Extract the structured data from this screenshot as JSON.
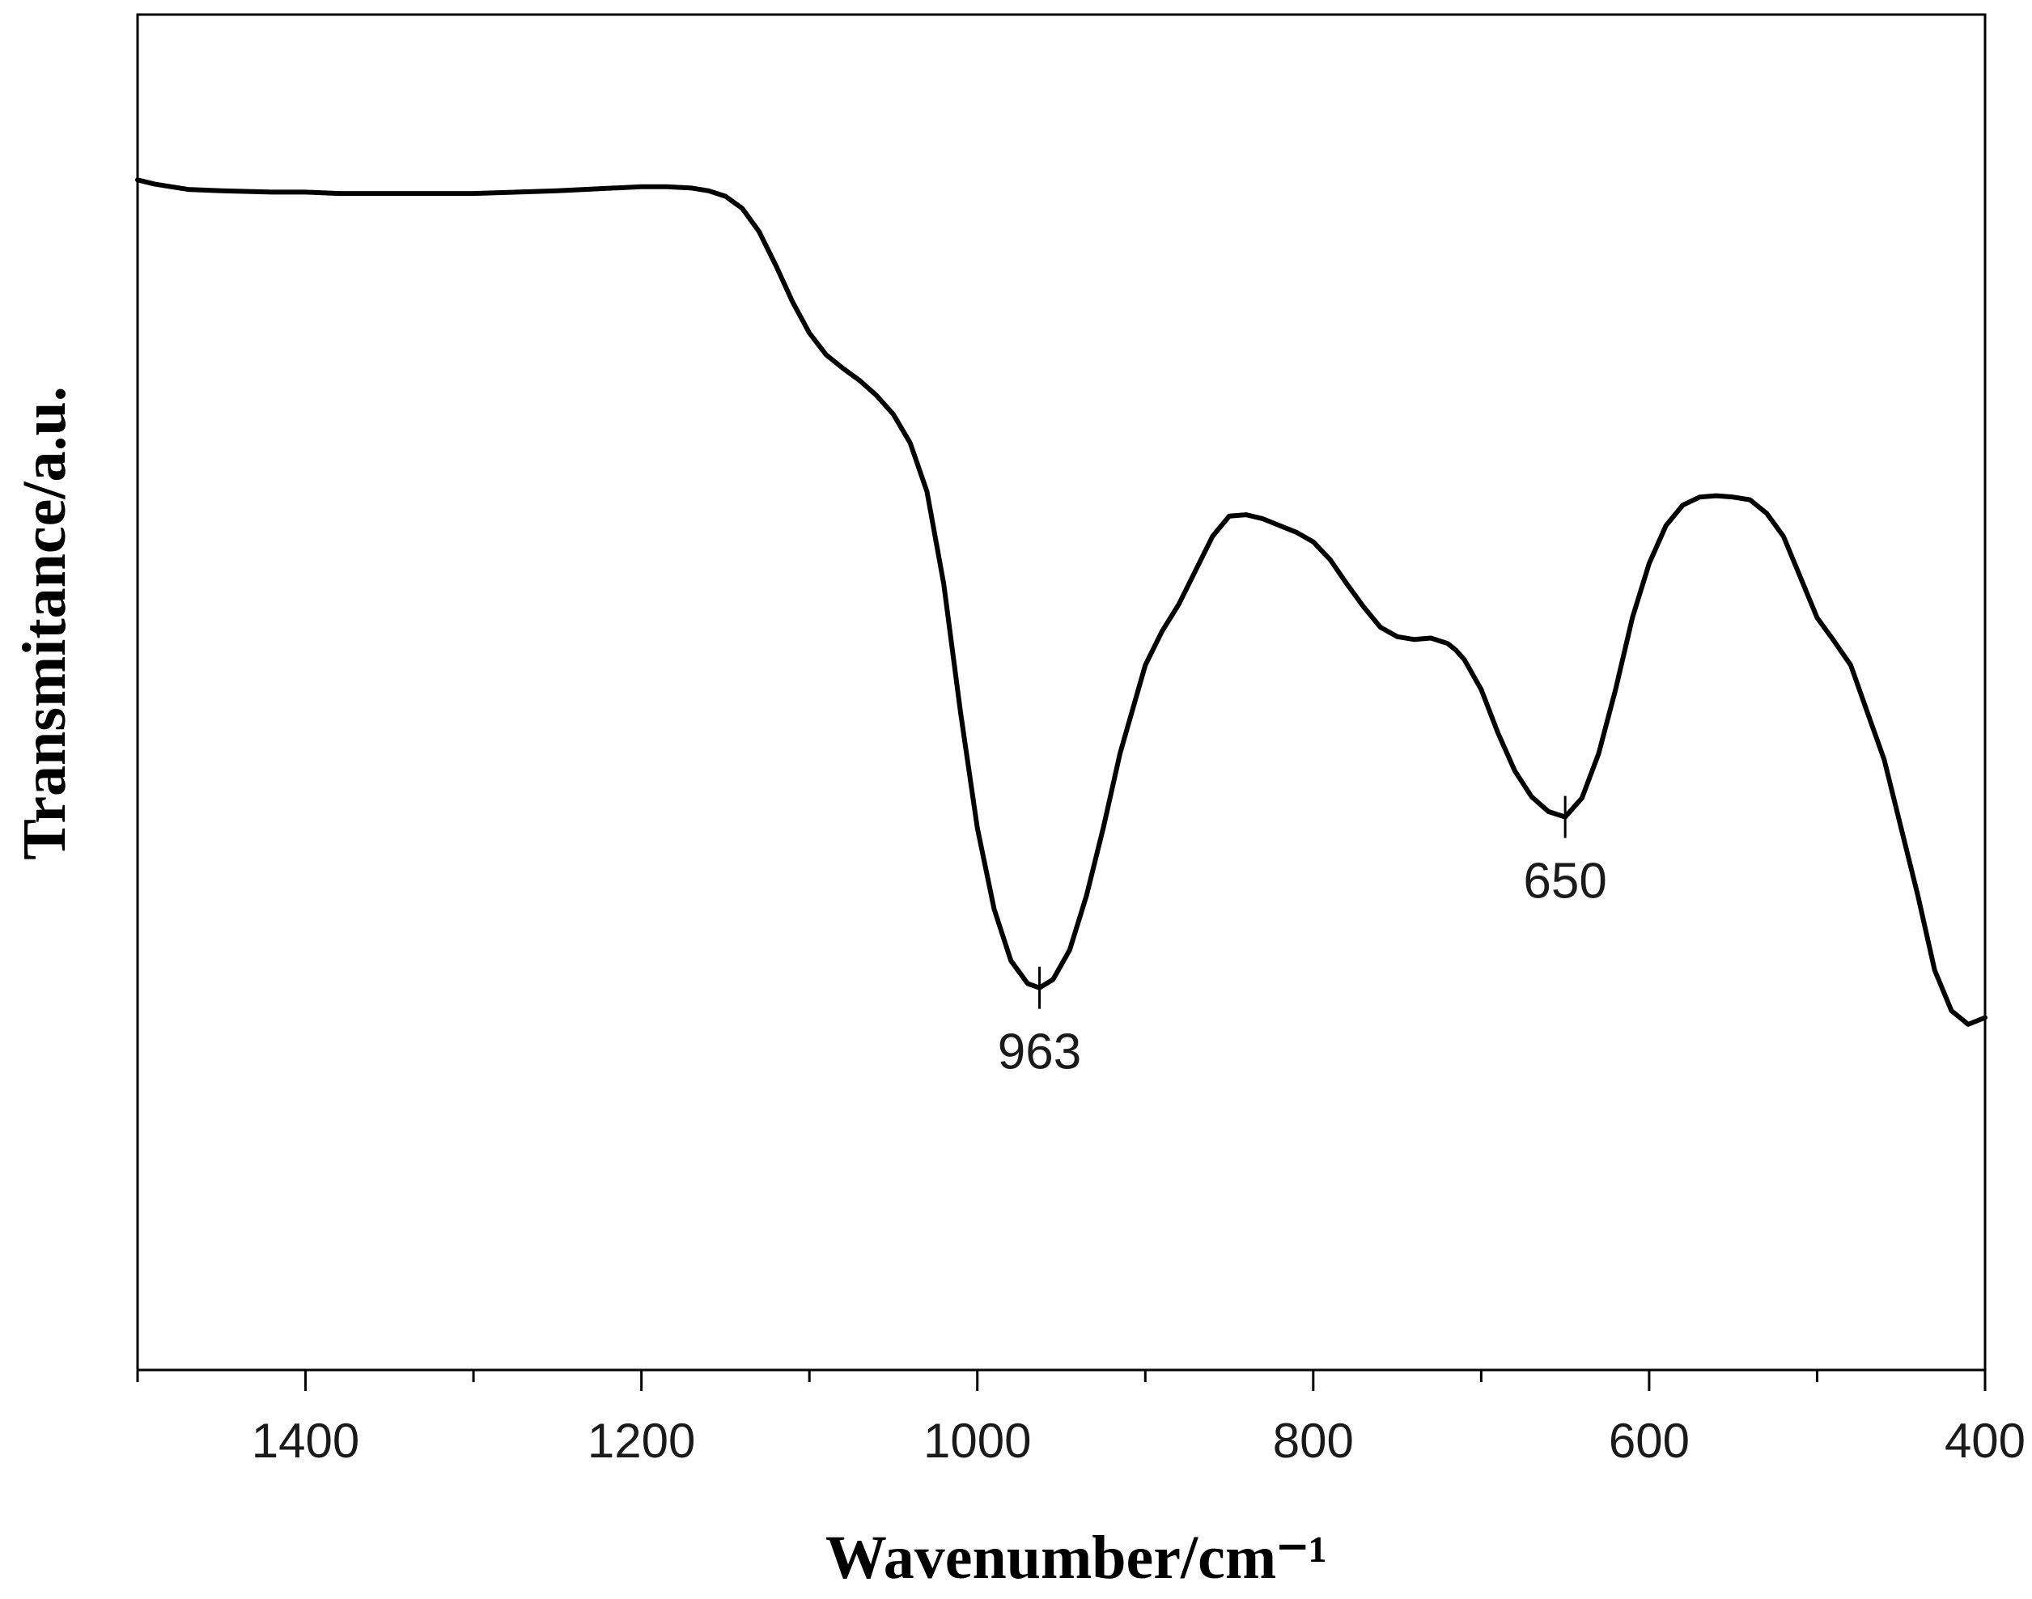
{
  "chart_data": {
    "type": "line",
    "title": "",
    "xlabel": "Wavenumber/cm⁻¹",
    "ylabel": "Transmitance/a.u.",
    "xlim": [
      1500,
      400
    ],
    "x_reversed": true,
    "ylim": [
      0,
      100
    ],
    "y_ticks_shown": false,
    "grid": false,
    "legend": "none",
    "x_ticks": [
      1400,
      1200,
      1000,
      800,
      600,
      400
    ],
    "x_tick_labels": [
      "1400",
      "1200",
      "1000",
      "800",
      "600",
      "400"
    ],
    "x_minor_ticks": [
      1500,
      1300,
      1100,
      900,
      700,
      500
    ],
    "series": [
      {
        "color": "#000000",
        "x": [
          1500,
          1490,
          1470,
          1450,
          1420,
          1400,
          1380,
          1350,
          1300,
          1250,
          1200,
          1185,
          1170,
          1160,
          1150,
          1140,
          1130,
          1120,
          1110,
          1100,
          1090,
          1080,
          1070,
          1060,
          1050,
          1040,
          1030,
          1020,
          1010,
          1000,
          990,
          980,
          970,
          963,
          955,
          945,
          935,
          925,
          915,
          900,
          890,
          880,
          870,
          860,
          850,
          840,
          830,
          820,
          810,
          800,
          790,
          780,
          770,
          760,
          750,
          740,
          730,
          720,
          715,
          710,
          700,
          690,
          680,
          670,
          660,
          650,
          640,
          630,
          620,
          610,
          600,
          590,
          580,
          570,
          560,
          550,
          540,
          530,
          520,
          510,
          500,
          490,
          480,
          470,
          460,
          450,
          440,
          430,
          420,
          410,
          400
        ],
        "y": [
          87.8,
          87.5,
          87.1,
          87.0,
          86.9,
          86.9,
          86.8,
          86.8,
          86.8,
          87.0,
          87.3,
          87.3,
          87.2,
          87.0,
          86.6,
          85.7,
          84.0,
          81.5,
          78.8,
          76.5,
          74.9,
          73.9,
          73.0,
          71.9,
          70.5,
          68.4,
          64.8,
          58.0,
          48.5,
          40.0,
          34.0,
          30.2,
          28.5,
          28.2,
          28.8,
          31.0,
          35.0,
          40.0,
          45.5,
          52.0,
          54.5,
          56.5,
          59.0,
          61.5,
          63.0,
          63.1,
          62.8,
          62.3,
          61.8,
          61.1,
          59.8,
          58.0,
          56.3,
          54.8,
          54.1,
          53.9,
          54.0,
          53.6,
          53.1,
          52.4,
          50.2,
          47.0,
          44.2,
          42.3,
          41.2,
          40.8,
          42.2,
          45.5,
          50.2,
          55.5,
          59.5,
          62.3,
          63.8,
          64.4,
          64.5,
          64.4,
          64.2,
          63.2,
          61.5,
          58.5,
          55.5,
          53.8,
          52.0,
          48.5,
          45.0,
          40.0,
          35.0,
          29.5,
          26.5,
          25.5,
          26.0
        ]
      }
    ],
    "annotations": [
      {
        "x": 963,
        "y": 28.2,
        "text": "963"
      },
      {
        "x": 650,
        "y": 40.8,
        "text": "650"
      }
    ]
  }
}
